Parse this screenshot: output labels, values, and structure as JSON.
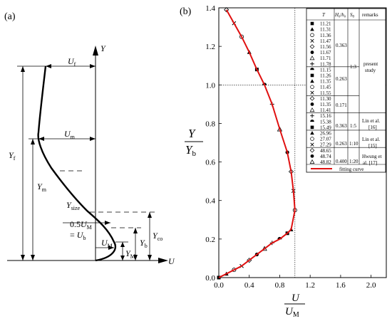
{
  "panel_a": {
    "label": "(a)",
    "axis_y": "Y",
    "axis_x": "U",
    "u_f": {
      "main": "U",
      "sub": "f"
    },
    "u_m": {
      "main": "U",
      "sub": "m"
    },
    "u_big_m": {
      "main": "U",
      "sub": "M"
    },
    "y_f": {
      "main": "Y",
      "sub": "f"
    },
    "y_m": {
      "main": "Y",
      "sub": "m"
    },
    "y_size": {
      "main": "Y",
      "sub": "size"
    },
    "y_co": {
      "main": "Y",
      "sub": "co"
    },
    "y_b": {
      "main": "Y",
      "sub": "b"
    },
    "y_big_m": {
      "main": "Y",
      "sub": "M"
    },
    "eq_line1": {
      "pre": "0.5",
      "main": "U",
      "sub": "M"
    },
    "eq_line2": {
      "pre": "= ",
      "main": "U",
      "sub": "b"
    }
  },
  "table": {
    "headers": {
      "t": "T",
      "h": "H",
      "h_sub1": "0",
      "h_sep": "/",
      "h_h": "h",
      "h_sub2": "0",
      "s": "S",
      "s_sub": "0",
      "remarks": "remarks"
    },
    "t_values": [
      "11.21",
      "11.31",
      "11.36",
      "11.47",
      "11.56",
      "11.67",
      "11.71",
      "11.78",
      "11.15",
      "11.26",
      "11.35",
      "11.45",
      "11.55",
      "11.30",
      "11.35",
      "11.41",
      "15.16",
      "15.38",
      "15.49",
      "26.96",
      "27.07",
      "27.29",
      "48.65",
      "48.74",
      "48.82"
    ],
    "h_values": [
      "0.363",
      "0.263",
      "0.171",
      "0.363",
      "0.263",
      "0.400"
    ],
    "s_values": [
      "1:3",
      "1:5",
      "1:10",
      "1:20"
    ],
    "remarks": [
      [
        "present",
        "study"
      ],
      [
        "Lin et al.",
        "[16]"
      ],
      [
        "Lin et al.",
        "[15]"
      ],
      [
        "Hwung et",
        "al. [17]"
      ]
    ],
    "fit_label": "fitting curve"
  },
  "chart_data": {
    "type": "scatter",
    "panel_label": "(b)",
    "xlabel": {
      "main": "U",
      "denom_main": "U",
      "denom_sub": "M"
    },
    "ylabel": {
      "main": "Y",
      "denom_main": "Y",
      "denom_sub": "b"
    },
    "xlim": [
      0,
      2.2
    ],
    "ylim": [
      0,
      1.4
    ],
    "xticks": [
      "0.0",
      "0.4",
      "0.8",
      "1.2",
      "1.6",
      "2.0"
    ],
    "yticks": [
      "0.0",
      "0.2",
      "0.4",
      "0.6",
      "0.8",
      "1.0",
      "1.2",
      "1.4"
    ],
    "reference_lines": {
      "x": 1.0,
      "y": 1.0
    },
    "fit_curve_color": "#e01010",
    "fitting_curve": {
      "x": [
        0.0,
        0.1,
        0.2,
        0.3,
        0.4,
        0.5,
        0.6,
        0.7,
        0.8,
        0.9,
        0.95,
        1.0,
        0.98,
        0.95,
        0.9,
        0.8,
        0.7,
        0.6,
        0.5,
        0.4,
        0.3,
        0.2,
        0.1
      ],
      "y": [
        0.0,
        0.02,
        0.04,
        0.06,
        0.09,
        0.12,
        0.15,
        0.18,
        0.2,
        0.23,
        0.25,
        0.35,
        0.45,
        0.55,
        0.65,
        0.77,
        0.9,
        1.0,
        1.08,
        1.17,
        1.25,
        1.32,
        1.39
      ]
    },
    "series": [
      {
        "x": [
          0.0,
          0.1,
          0.2,
          0.3,
          0.4,
          0.5,
          0.6,
          0.7,
          0.8,
          0.9,
          0.95,
          1.0,
          0.98,
          0.95,
          0.9,
          0.8,
          0.7,
          0.6,
          0.5,
          0.4,
          0.3,
          0.2,
          0.1
        ],
        "y": [
          0.0,
          0.02,
          0.04,
          0.06,
          0.09,
          0.12,
          0.15,
          0.18,
          0.2,
          0.23,
          0.25,
          0.35,
          0.45,
          0.55,
          0.65,
          0.77,
          0.9,
          1.0,
          1.08,
          1.17,
          1.25,
          1.32,
          1.39
        ]
      }
    ]
  }
}
